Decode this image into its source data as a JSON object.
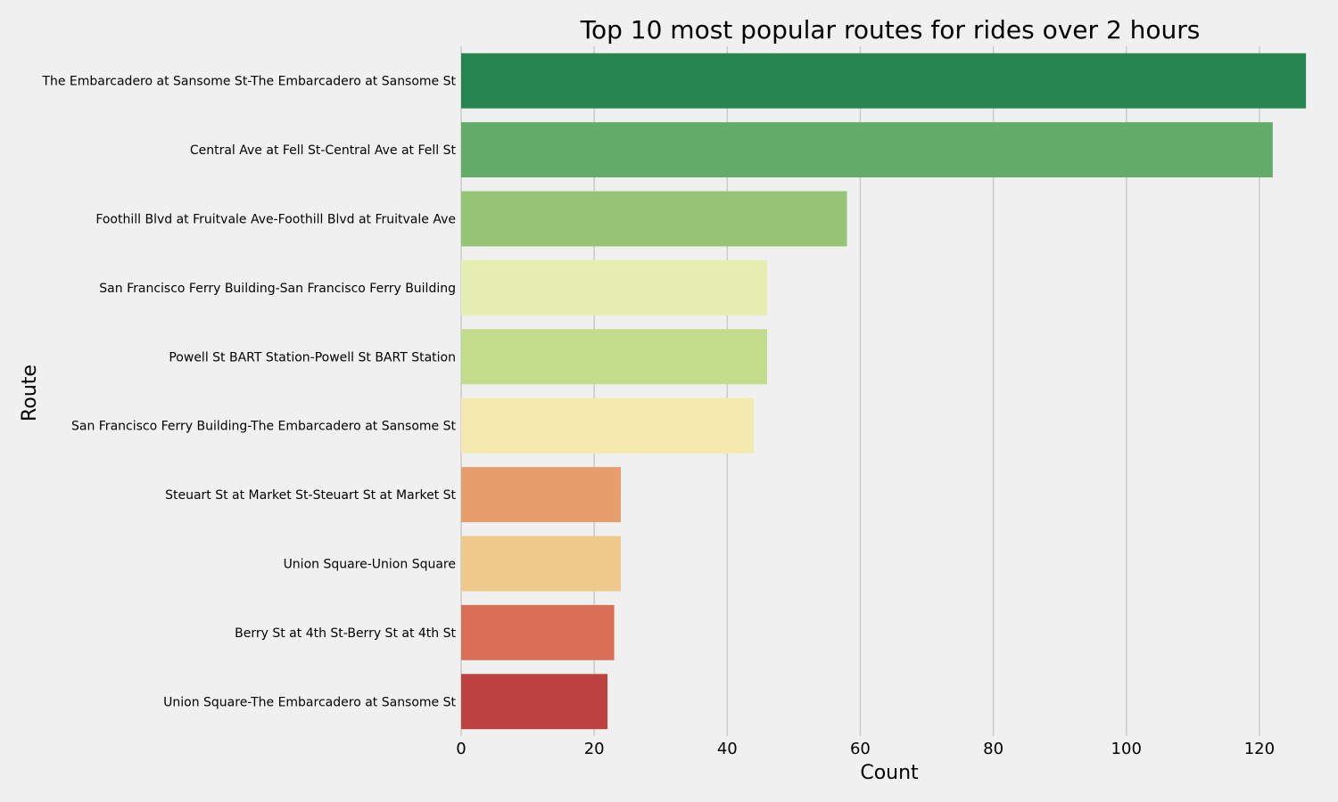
{
  "chart_data": {
    "type": "bar",
    "orientation": "horizontal",
    "title": "Top 10 most popular routes for rides over 2 hours",
    "xlabel": "Count",
    "ylabel": "Route",
    "xlim": [
      0,
      129
    ],
    "xticks": [
      0,
      20,
      40,
      60,
      80,
      100,
      120
    ],
    "grid": "vertical",
    "background": "#f0f0f0",
    "categories": [
      "The Embarcadero at Sansome St-The Embarcadero at Sansome St",
      "Central Ave at Fell St-Central Ave at Fell St",
      "Foothill Blvd at Fruitvale Ave-Foothill Blvd at Fruitvale Ave",
      "San Francisco Ferry Building-San Francisco Ferry Building",
      "Powell St BART Station-Powell St BART Station",
      "San Francisco Ferry Building-The Embarcadero at Sansome St",
      "Steuart St at Market St-Steuart St at Market St",
      "Union Square-Union Square",
      "Berry St at 4th St-Berry St at 4th St",
      "Union Square-The Embarcadero at Sansome St"
    ],
    "values": [
      127,
      122,
      58,
      46,
      46,
      44,
      24,
      24,
      23,
      22
    ],
    "colors": [
      "#268551",
      "#63ab69",
      "#95c574",
      "#e6eeb1",
      "#c3dc8b",
      "#f4eab0",
      "#e79e6d",
      "#eec98b",
      "#d86f56",
      "#be4141"
    ]
  }
}
